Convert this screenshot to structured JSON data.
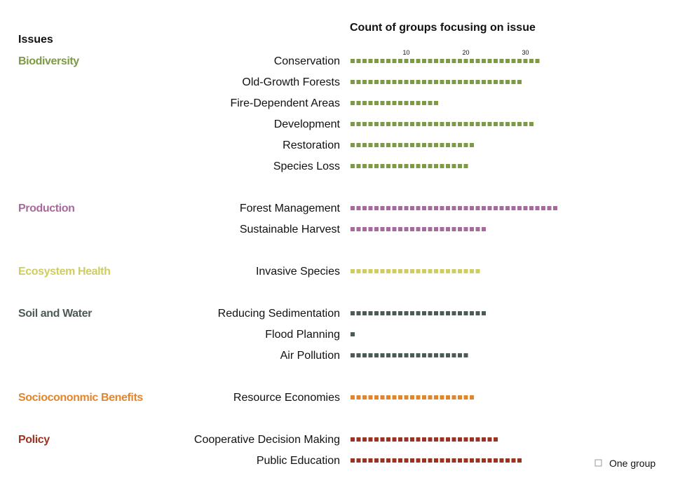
{
  "chart_data": {
    "type": "bar",
    "title": "Count of groups focusing on issue",
    "column_header": "Issues",
    "unit_legend": "One group",
    "axis": {
      "ticks": [
        10,
        20,
        30
      ]
    },
    "groups": [
      {
        "name": "Biodiversity",
        "color": "#7d9a46",
        "items": [
          {
            "label": "Conservation",
            "value": 32
          },
          {
            "label": "Old-Growth Forests",
            "value": 29
          },
          {
            "label": "Fire-Dependent Areas",
            "value": 15
          },
          {
            "label": "Development",
            "value": 31
          },
          {
            "label": "Restoration",
            "value": 21
          },
          {
            "label": "Species Loss",
            "value": 20
          }
        ]
      },
      {
        "name": "Production",
        "color": "#a66b9a",
        "items": [
          {
            "label": "Forest Management",
            "value": 35
          },
          {
            "label": "Sustainable Harvest",
            "value": 23
          }
        ]
      },
      {
        "name": "Ecosystem Health",
        "color": "#cfcc60",
        "items": [
          {
            "label": "Invasive Species",
            "value": 22
          }
        ]
      },
      {
        "name": "Soil and Water",
        "color": "#4d5b55",
        "items": [
          {
            "label": "Reducing Sedimentation",
            "value": 23
          },
          {
            "label": "Flood Planning",
            "value": 1
          },
          {
            "label": "Air Pollution",
            "value": 20
          }
        ]
      },
      {
        "name": "Socioeconomic Benefits",
        "display_name": "Sociocononmic Benefits",
        "color": "#e2862e",
        "items": [
          {
            "label": "Resource Economies",
            "value": 21
          }
        ]
      },
      {
        "name": "Policy",
        "color": "#9c3322",
        "items": [
          {
            "label": "Cooperative Decision Making",
            "value": 25
          },
          {
            "label": "Public Education",
            "value": 29
          }
        ]
      }
    ]
  }
}
